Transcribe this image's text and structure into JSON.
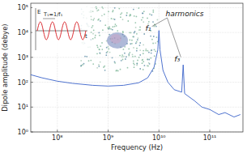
{
  "chart_data": {
    "type": "line",
    "log": true,
    "grid": true,
    "x_label": "Frequency (Hz)",
    "y_label": "Dipole amplitude (debye)",
    "color": "#3b63c9",
    "x": [
      30000000.0,
      50000000.0,
      100000000.0,
      200000000.0,
      500000000.0,
      1000000000.0,
      2000000000.0,
      4000000000.0,
      6000000000.0,
      8000000000.0,
      9500000000.0,
      10000000000.0,
      10500000000.0,
      12000000000.0,
      15000000000.0,
      20000000000.0,
      28000000000.0,
      30000000000.0,
      32000000000.0,
      40000000000.0,
      50000000000.0,
      70000000000.0,
      100000000000.0,
      150000000000.0,
      200000000000.0,
      300000000000.0,
      400000000000.0
    ],
    "values": [
      200,
      150,
      110,
      90,
      75,
      70,
      75,
      95,
      150,
      400,
      2000,
      12000,
      2000,
      300,
      100,
      50,
      40,
      500,
      35,
      25,
      18,
      10,
      8,
      5,
      6,
      4,
      5
    ],
    "xlim": [
      30000000.0,
      450000000000.0
    ],
    "ylim": [
      1,
      150000
    ],
    "xticks": [
      {
        "value": 100000000.0,
        "label": "10⁸"
      },
      {
        "value": 1000000000.0,
        "label": "10⁹"
      },
      {
        "value": 10000000000.0,
        "label": "10¹⁰"
      },
      {
        "value": 100000000000.0,
        "label": "10¹¹"
      }
    ],
    "yticks": [
      {
        "value": 1,
        "label": "10⁰"
      },
      {
        "value": 10,
        "label": "10¹"
      },
      {
        "value": 100,
        "label": "10²"
      },
      {
        "value": 1000,
        "label": "10³"
      },
      {
        "value": 10000,
        "label": "10⁴"
      },
      {
        "value": 100000,
        "label": "10⁵"
      }
    ],
    "annotations": [
      {
        "text": "f₁",
        "x": 7000000000.0,
        "y": 12000
      },
      {
        "text": "f₃",
        "x": 26000000000.0,
        "y": 700
      },
      {
        "text": "harmonics",
        "x": 13500000000.0,
        "y": 45000
      }
    ],
    "inset": {
      "y_label": "E",
      "x_label": "t",
      "period_label": "T₁=1/f₁"
    }
  }
}
